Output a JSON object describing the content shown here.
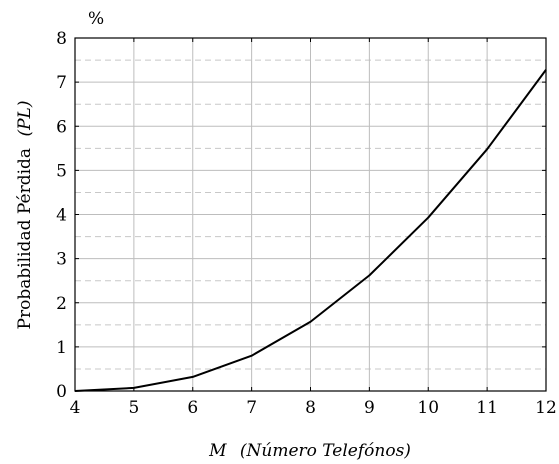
{
  "chart_data": {
    "type": "line",
    "unit_label": "%",
    "xlabel_var": "M",
    "xlabel_rest": "(Número Telefónos)",
    "ylabel_main": "Probabilidad Pérdida",
    "ylabel_var": "(PL)",
    "xlim": [
      4,
      12
    ],
    "ylim": [
      0,
      8
    ],
    "x_ticks": [
      "4",
      "5",
      "6",
      "7",
      "8",
      "9",
      "10",
      "11",
      "12"
    ],
    "y_ticks": [
      "0",
      "1",
      "2",
      "3",
      "4",
      "5",
      "6",
      "7",
      "8"
    ],
    "grid": true,
    "minor_grid_dashed": true,
    "series": [
      {
        "color": "#000000",
        "x": [
          4,
          5,
          6,
          7,
          8,
          9,
          10,
          11,
          12
        ],
        "y": [
          0.0,
          0.07,
          0.32,
          0.8,
          1.57,
          2.62,
          3.93,
          5.48,
          7.28
        ]
      }
    ]
  }
}
